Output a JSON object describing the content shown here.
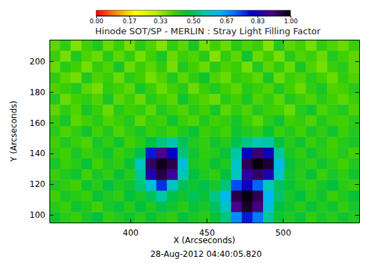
{
  "chart_data": {
    "type": "heatmap",
    "title": "Hinode SOT/SP - MERLIN : Stray Light Filling Factor",
    "x_label": "X (Arcseconds)",
    "y_label": "Y (Arcseconds)",
    "annotation": "28-Aug-2012 04:40:05.820",
    "xlim": [
      347,
      550
    ],
    "ylim": [
      95,
      214
    ],
    "xticks": [
      400,
      450,
      500
    ],
    "yticks": [
      100,
      120,
      140,
      160,
      180,
      200
    ],
    "x_edges": [
      347,
      354,
      361,
      368,
      375,
      382,
      389,
      396,
      403,
      410,
      417,
      424,
      431,
      438,
      445,
      452,
      459,
      466,
      473,
      480,
      487,
      494,
      501,
      508,
      515,
      522,
      529,
      536,
      543,
      550
    ],
    "y_edges": [
      95,
      102,
      109,
      116,
      123,
      130,
      137,
      144,
      151,
      158,
      165,
      172,
      179,
      186,
      193,
      200,
      207,
      214
    ],
    "z": [
      [
        0.46,
        0.43,
        0.41,
        0.45,
        0.48,
        0.42,
        0.44,
        0.46,
        0.43,
        0.47,
        0.44,
        0.42,
        0.48,
        0.45,
        0.43,
        0.47,
        0.52,
        0.68,
        0.78,
        0.7,
        0.54,
        0.46,
        0.44,
        0.47,
        0.42,
        0.45,
        0.43,
        0.46,
        0.44
      ],
      [
        0.43,
        0.41,
        0.46,
        0.44,
        0.4,
        0.45,
        0.47,
        0.43,
        0.48,
        0.44,
        0.49,
        0.46,
        0.43,
        0.47,
        0.45,
        0.5,
        0.58,
        0.9,
        0.97,
        0.91,
        0.6,
        0.48,
        0.46,
        0.43,
        0.47,
        0.44,
        0.46,
        0.42,
        0.45
      ],
      [
        0.4,
        0.45,
        0.43,
        0.41,
        0.47,
        0.44,
        0.42,
        0.48,
        0.45,
        0.5,
        0.55,
        0.49,
        0.46,
        0.5,
        0.47,
        0.53,
        0.62,
        0.95,
        0.99,
        0.94,
        0.63,
        0.51,
        0.45,
        0.48,
        0.43,
        0.46,
        0.41,
        0.44,
        0.47
      ],
      [
        0.44,
        0.42,
        0.4,
        0.46,
        0.43,
        0.48,
        0.44,
        0.46,
        0.52,
        0.6,
        0.76,
        0.58,
        0.5,
        0.46,
        0.49,
        0.45,
        0.52,
        0.74,
        0.82,
        0.72,
        0.57,
        0.5,
        0.47,
        0.44,
        0.42,
        0.45,
        0.48,
        0.43,
        0.41
      ],
      [
        0.41,
        0.44,
        0.46,
        0.4,
        0.45,
        0.42,
        0.47,
        0.43,
        0.54,
        0.85,
        0.95,
        0.88,
        0.56,
        0.48,
        0.44,
        0.42,
        0.48,
        0.57,
        0.86,
        0.93,
        0.84,
        0.58,
        0.46,
        0.43,
        0.47,
        0.41,
        0.45,
        0.42,
        0.46
      ],
      [
        0.45,
        0.41,
        0.43,
        0.47,
        0.4,
        0.44,
        0.42,
        0.47,
        0.58,
        0.93,
        0.98,
        0.95,
        0.6,
        0.45,
        0.43,
        0.47,
        0.44,
        0.58,
        0.94,
        0.99,
        0.96,
        0.62,
        0.47,
        0.44,
        0.42,
        0.46,
        0.43,
        0.4,
        0.44
      ],
      [
        0.42,
        0.4,
        0.45,
        0.41,
        0.43,
        0.46,
        0.41,
        0.44,
        0.49,
        0.78,
        0.9,
        0.8,
        0.52,
        0.46,
        0.42,
        0.44,
        0.47,
        0.55,
        0.8,
        0.92,
        0.82,
        0.54,
        0.45,
        0.42,
        0.46,
        0.43,
        0.41,
        0.44,
        0.4
      ],
      [
        0.4,
        0.44,
        0.41,
        0.39,
        0.45,
        0.42,
        0.46,
        0.4,
        0.43,
        0.48,
        0.52,
        0.55,
        0.5,
        0.44,
        0.42,
        0.46,
        0.43,
        0.49,
        0.53,
        0.56,
        0.55,
        0.48,
        0.43,
        0.46,
        0.41,
        0.44,
        0.4,
        0.43,
        0.45
      ],
      [
        0.43,
        0.39,
        0.42,
        0.46,
        0.4,
        0.44,
        0.39,
        0.42,
        0.45,
        0.41,
        0.43,
        0.4,
        0.44,
        0.47,
        0.41,
        0.43,
        0.4,
        0.46,
        0.44,
        0.42,
        0.47,
        0.41,
        0.44,
        0.4,
        0.45,
        0.42,
        0.46,
        0.41,
        0.44
      ],
      [
        0.41,
        0.45,
        0.38,
        0.4,
        0.43,
        0.39,
        0.41,
        0.44,
        0.38,
        0.42,
        0.4,
        0.46,
        0.41,
        0.39,
        0.44,
        0.4,
        0.42,
        0.45,
        0.41,
        0.38,
        0.43,
        0.46,
        0.4,
        0.42,
        0.39,
        0.44,
        0.41,
        0.4,
        0.43
      ],
      [
        0.38,
        0.42,
        0.39,
        0.45,
        0.41,
        0.37,
        0.43,
        0.4,
        0.42,
        0.38,
        0.44,
        0.41,
        0.39,
        0.43,
        0.4,
        0.45,
        0.38,
        0.42,
        0.39,
        0.44,
        0.41,
        0.4,
        0.37,
        0.43,
        0.46,
        0.39,
        0.42,
        0.44,
        0.39
      ],
      [
        0.44,
        0.37,
        0.4,
        0.42,
        0.39,
        0.45,
        0.38,
        0.41,
        0.37,
        0.43,
        0.4,
        0.38,
        0.46,
        0.41,
        0.39,
        0.37,
        0.43,
        0.4,
        0.45,
        0.39,
        0.42,
        0.38,
        0.44,
        0.41,
        0.39,
        0.43,
        0.4,
        0.38,
        0.41
      ],
      [
        0.39,
        0.41,
        0.44,
        0.38,
        0.36,
        0.42,
        0.4,
        0.38,
        0.45,
        0.41,
        0.37,
        0.4,
        0.43,
        0.37,
        0.41,
        0.44,
        0.4,
        0.38,
        0.43,
        0.41,
        0.39,
        0.44,
        0.4,
        0.37,
        0.42,
        0.45,
        0.39,
        0.4,
        0.43
      ],
      [
        0.42,
        0.38,
        0.36,
        0.44,
        0.39,
        0.41,
        0.37,
        0.43,
        0.4,
        0.36,
        0.39,
        0.44,
        0.38,
        0.42,
        0.46,
        0.39,
        0.37,
        0.42,
        0.4,
        0.38,
        0.45,
        0.37,
        0.41,
        0.39,
        0.43,
        0.4,
        0.37,
        0.42,
        0.39
      ],
      [
        0.37,
        0.43,
        0.4,
        0.36,
        0.42,
        0.39,
        0.45,
        0.37,
        0.41,
        0.38,
        0.42,
        0.36,
        0.44,
        0.4,
        0.37,
        0.43,
        0.39,
        0.41,
        0.36,
        0.44,
        0.38,
        0.42,
        0.37,
        0.45,
        0.39,
        0.36,
        0.41,
        0.43,
        0.38
      ],
      [
        0.41,
        0.36,
        0.44,
        0.39,
        0.37,
        0.43,
        0.38,
        0.42,
        0.36,
        0.4,
        0.45,
        0.37,
        0.41,
        0.39,
        0.43,
        0.35,
        0.42,
        0.38,
        0.46,
        0.37,
        0.4,
        0.36,
        0.43,
        0.39,
        0.41,
        0.37,
        0.44,
        0.4,
        0.38
      ],
      [
        0.38,
        0.42,
        0.35,
        0.4,
        0.44,
        0.37,
        0.41,
        0.36,
        0.43,
        0.39,
        0.35,
        0.42,
        0.38,
        0.45,
        0.36,
        0.4,
        0.37,
        0.43,
        0.39,
        0.41,
        0.35,
        0.44,
        0.38,
        0.4,
        0.36,
        0.42,
        0.39,
        0.37,
        0.41
      ]
    ],
    "colorbar_range": [
      0,
      1
    ],
    "colorbar_ticks": [
      {
        "value": 0,
        "label": "0.00"
      },
      {
        "value": 0.17,
        "label": "0.17"
      },
      {
        "value": 0.33,
        "label": "0.33"
      },
      {
        "value": 0.5,
        "label": "0.50"
      },
      {
        "value": 0.67,
        "label": "0.67"
      },
      {
        "value": 0.83,
        "label": "0.83"
      },
      {
        "value": 1,
        "label": "1.00"
      }
    ]
  }
}
